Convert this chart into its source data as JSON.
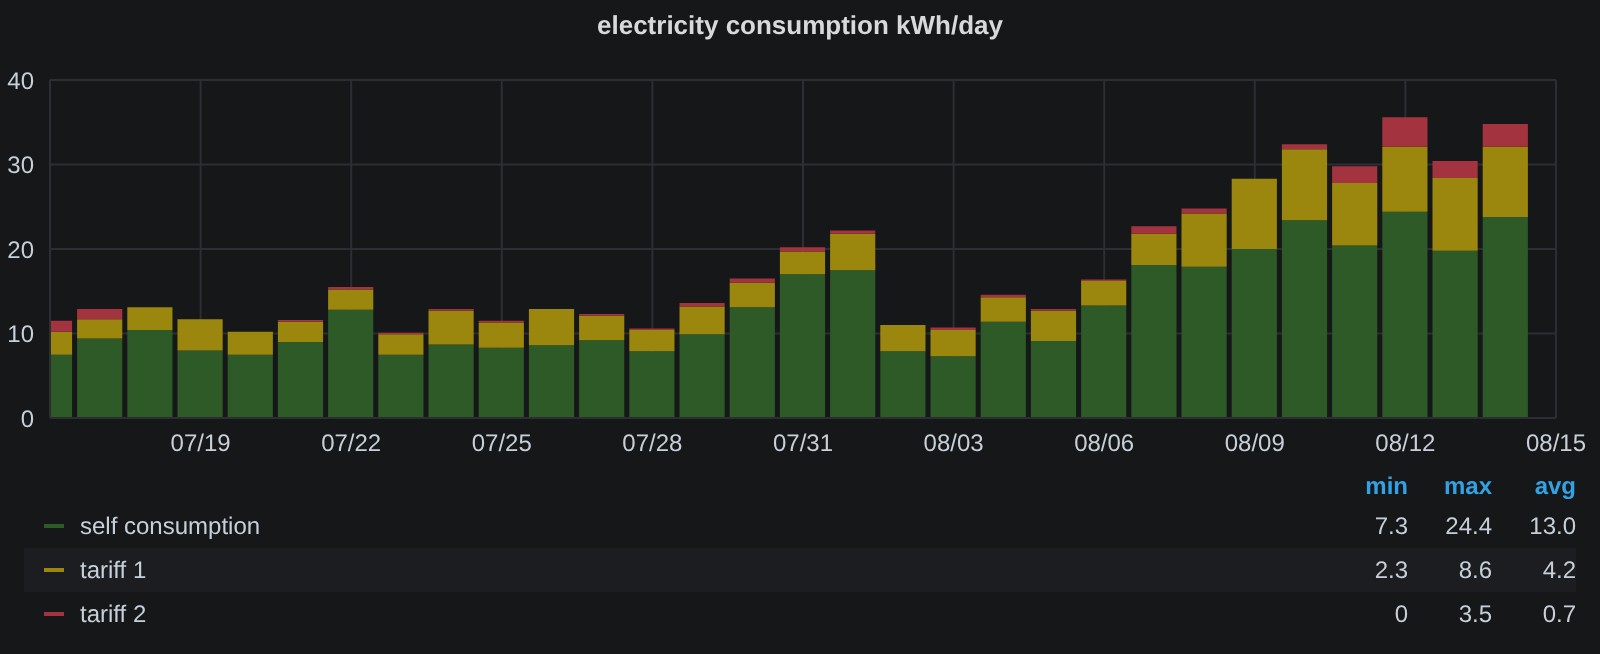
{
  "chart_data": {
    "type": "bar",
    "stacked": true,
    "title": "electricity consumption kWh/day",
    "x": [
      "--07-16",
      "--07-17",
      "--07-18",
      "--07-19",
      "--07-20",
      "--07-21",
      "--07-22",
      "--07-23",
      "--07-24",
      "--07-25",
      "--07-26",
      "--07-27",
      "--07-28",
      "--07-29",
      "--07-30",
      "--07-31",
      "--08-01",
      "--08-02",
      "--08-03",
      "--08-04",
      "--08-05",
      "--08-06",
      "--08-07",
      "--08-08",
      "--08-09",
      "--08-10",
      "--08-11",
      "--08-12",
      "--08-13",
      "--08-14"
    ],
    "series": [
      {
        "name": "self consumption",
        "color": "#2d5a27",
        "values": [
          7.5,
          9.4,
          10.4,
          8.0,
          7.5,
          9.0,
          12.8,
          7.5,
          8.7,
          8.3,
          8.6,
          9.2,
          7.9,
          9.9,
          13.1,
          17.0,
          17.5,
          7.9,
          7.3,
          11.4,
          9.1,
          13.3,
          18.1,
          17.9,
          20.0,
          23.4,
          20.4,
          24.4,
          19.8,
          23.8
        ]
      },
      {
        "name": "tariff 1",
        "color": "#9c870e",
        "values": [
          2.7,
          2.3,
          2.7,
          3.7,
          2.7,
          2.4,
          2.4,
          2.4,
          4.0,
          3.0,
          4.3,
          2.9,
          2.5,
          3.3,
          2.9,
          2.7,
          4.3,
          3.1,
          3.1,
          2.9,
          3.6,
          2.9,
          3.7,
          6.3,
          8.3,
          8.4,
          7.4,
          7.7,
          8.6,
          8.3
        ]
      },
      {
        "name": "tariff 2",
        "color": "#a3343f",
        "values": [
          1.3,
          1.2,
          0,
          0,
          0,
          0.2,
          0.3,
          0.2,
          0.2,
          0.2,
          0,
          0.2,
          0.2,
          0.4,
          0.5,
          0.5,
          0.4,
          0,
          0.3,
          0.3,
          0.2,
          0.2,
          0.9,
          0.6,
          0,
          0.6,
          2.0,
          3.5,
          2.0,
          2.7
        ]
      }
    ],
    "xlim": [
      "--07-16",
      "--08-15"
    ],
    "xticks": [
      {
        "value": "--07-19",
        "label": "07/19"
      },
      {
        "value": "--07-22",
        "label": "07/22"
      },
      {
        "value": "--07-25",
        "label": "07/25"
      },
      {
        "value": "--07-28",
        "label": "07/28"
      },
      {
        "value": "--07-31",
        "label": "07/31"
      },
      {
        "value": "--08-03",
        "label": "08/03"
      },
      {
        "value": "--08-06",
        "label": "08/06"
      },
      {
        "value": "--08-09",
        "label": "08/09"
      },
      {
        "value": "--08-12",
        "label": "08/12"
      },
      {
        "value": "--08-15",
        "label": "08/15"
      }
    ],
    "ylim": [
      0,
      40
    ],
    "yticks": [
      0,
      10,
      20,
      30,
      40
    ],
    "grid": true,
    "legend": "bottom",
    "annotations": [
      "min",
      "max",
      "avg",
      "7.3",
      "24.4",
      "13.0",
      "2.3",
      "8.6",
      "4.2",
      "0",
      "3.5",
      "0.7"
    ]
  }
}
